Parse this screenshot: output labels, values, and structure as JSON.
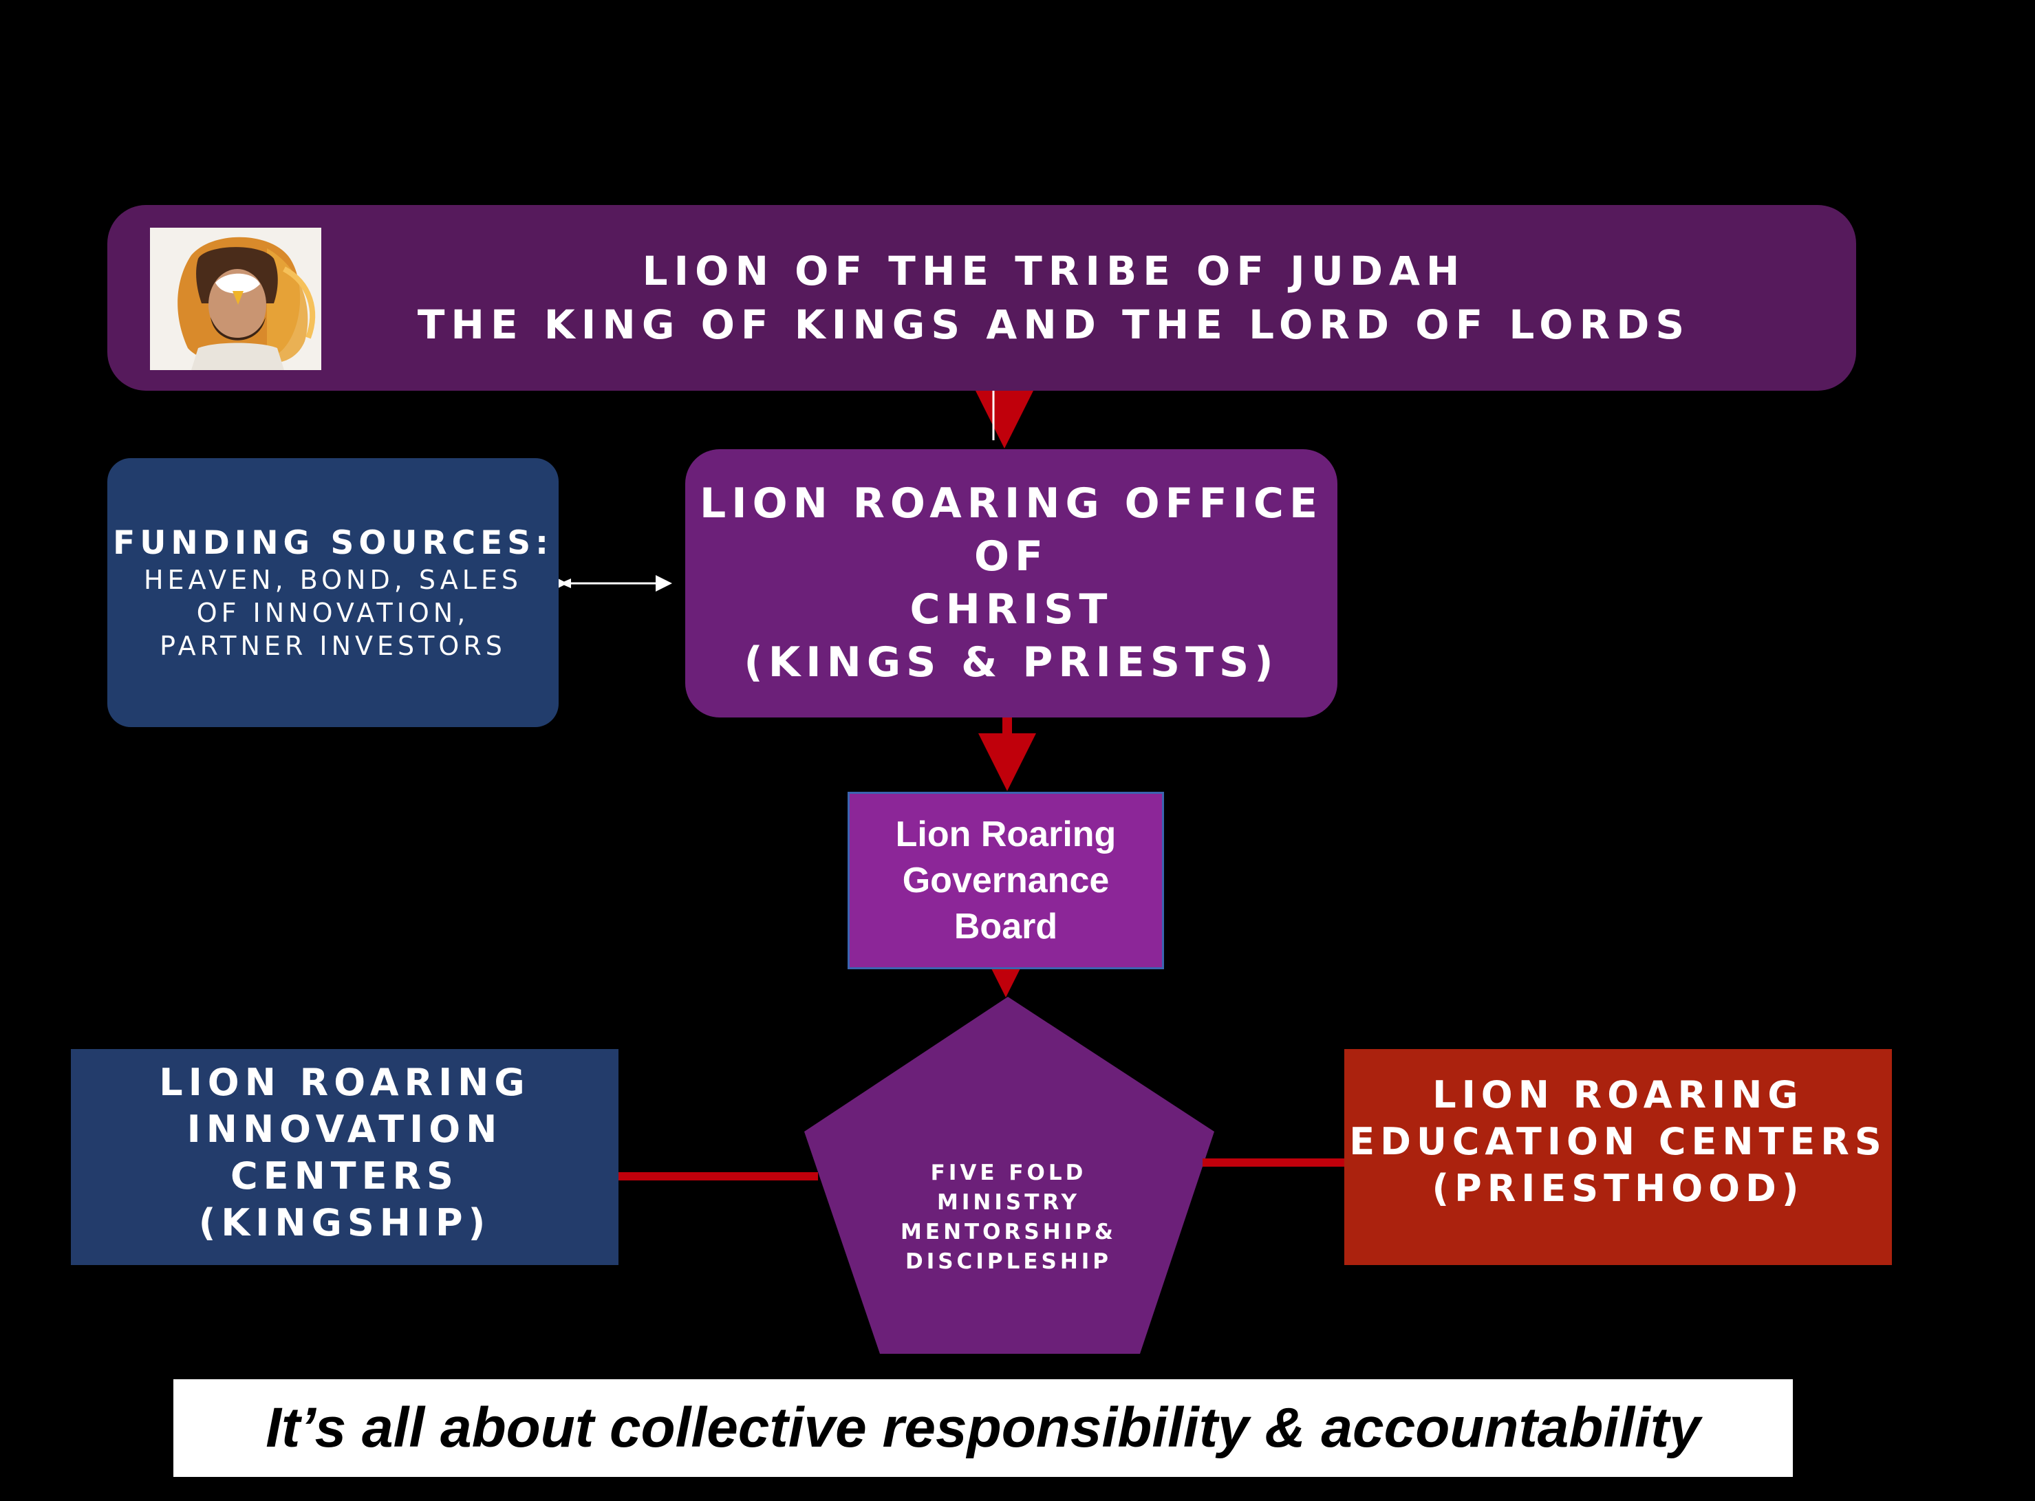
{
  "colors": {
    "background": "#000000",
    "banner": "#561a5c",
    "funding": "#223d6c",
    "office": "#6c2079",
    "board": "#8c2698",
    "board_border": "#3b64b0",
    "innovation": "#233c6b",
    "education": "#ab220e",
    "pentagon": "#6c2079",
    "connector": "#c0000b",
    "double_arrow": "#ffffff"
  },
  "banner": {
    "line1": "LION OF THE TRIBE OF JUDAH",
    "line2": "THE KING OF KINGS AND THE LORD OF LORDS"
  },
  "funding": {
    "heading": "FUNDING SOURCES:",
    "line1": "HEAVEN, BOND, SALES",
    "line2": "OF INNOVATION,",
    "line3": "PARTNER INVESTORS"
  },
  "office": {
    "line1": "LION ROARING OFFICE",
    "line2": "OF",
    "line3": "CHRIST",
    "line4": "(KINGS & PRIESTS)"
  },
  "board": {
    "line1": "Lion Roaring",
    "line2": "Governance",
    "line3": "Board"
  },
  "innovation": {
    "line1": "LION ROARING",
    "line2": "INNOVATION",
    "line3": "CENTERS",
    "line4": "(KINGSHIP)"
  },
  "education": {
    "line1": "LION ROARING",
    "line2": "EDUCATION CENTERS",
    "line3": "(PRIESTHOOD)"
  },
  "pentagon": {
    "line1": "FIVE FOLD",
    "line2": "MINISTRY",
    "line3": "MENTORSHIP&",
    "line4": "DISCIPLESHIP"
  },
  "tagline": "It’s all about collective responsibility & accountability"
}
